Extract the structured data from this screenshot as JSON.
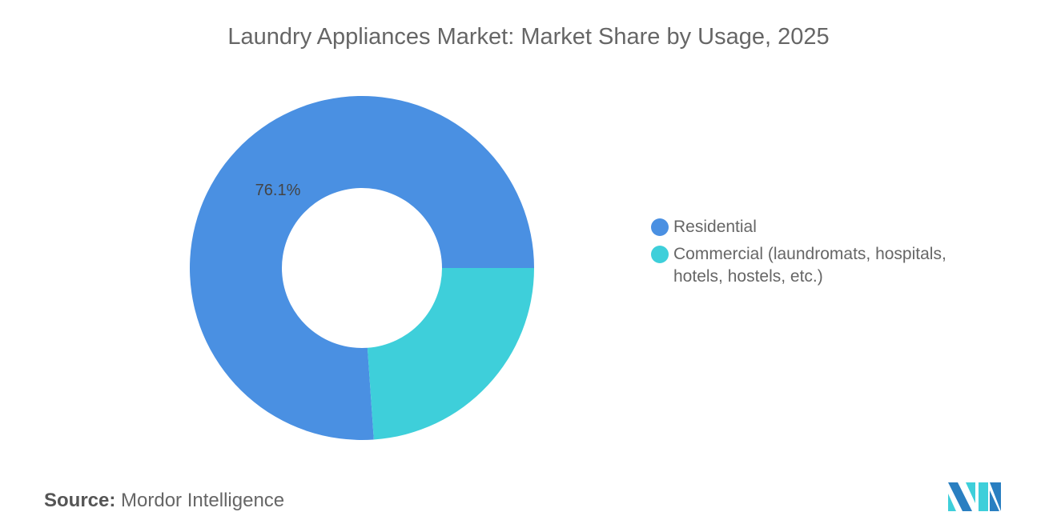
{
  "chart_data": {
    "type": "pie",
    "donut": true,
    "title": "Laundry Appliances Market: Market Share by Usage, 2025",
    "slices": [
      {
        "label": "Residential",
        "value": 76.1,
        "color": "#4a90e2",
        "data_label": "76.1%"
      },
      {
        "label": "Commercial (laundromats, hospitals, hotels, hostels, etc.)",
        "value": 23.9,
        "color": "#3ecfda"
      }
    ],
    "legend_placement": "right"
  },
  "source": {
    "label": "Source:",
    "value": "Mordor Intelligence"
  },
  "logo": {
    "name": "mordor-intelligence-logo",
    "colors": [
      "#2a7fc1",
      "#3ecfda"
    ]
  }
}
